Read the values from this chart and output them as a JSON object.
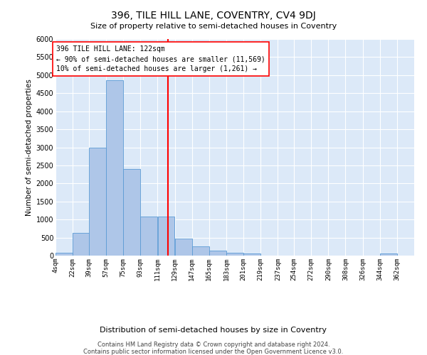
{
  "title": "396, TILE HILL LANE, COVENTRY, CV4 9DJ",
  "subtitle": "Size of property relative to semi-detached houses in Coventry",
  "xlabel": "Distribution of semi-detached houses by size in Coventry",
  "ylabel": "Number of semi-detached properties",
  "footer_line1": "Contains HM Land Registry data © Crown copyright and database right 2024.",
  "footer_line2": "Contains public sector information licensed under the Open Government Licence v3.0.",
  "annotation_text_line1": "396 TILE HILL LANE: 122sqm",
  "annotation_text_line2": "← 90% of semi-detached houses are smaller (11,569)",
  "annotation_text_line3": "10% of semi-detached houses are larger (1,261) →",
  "bin_labels": [
    "4sqm",
    "22sqm",
    "39sqm",
    "57sqm",
    "75sqm",
    "93sqm",
    "111sqm",
    "129sqm",
    "147sqm",
    "165sqm",
    "183sqm",
    "201sqm",
    "219sqm",
    "237sqm",
    "254sqm",
    "272sqm",
    "290sqm",
    "308sqm",
    "326sqm",
    "344sqm",
    "362sqm"
  ],
  "bin_left_edges": [
    4,
    22,
    39,
    57,
    75,
    93,
    111,
    129,
    147,
    165,
    183,
    201,
    219,
    237,
    254,
    272,
    290,
    308,
    326,
    344,
    362
  ],
  "bar_values": [
    80,
    620,
    3000,
    4850,
    2400,
    1080,
    1080,
    480,
    250,
    130,
    80,
    60,
    0,
    0,
    0,
    0,
    0,
    0,
    0,
    50,
    0
  ],
  "bar_color": "#aec6e8",
  "bar_edge_color": "#5b9bd5",
  "red_line_x": 122,
  "ylim": [
    0,
    6000
  ],
  "yticks": [
    0,
    500,
    1000,
    1500,
    2000,
    2500,
    3000,
    3500,
    4000,
    4500,
    5000,
    5500,
    6000
  ],
  "background_color": "#ffffff",
  "plot_bg_color": "#dce9f8",
  "grid_color": "#ffffff"
}
